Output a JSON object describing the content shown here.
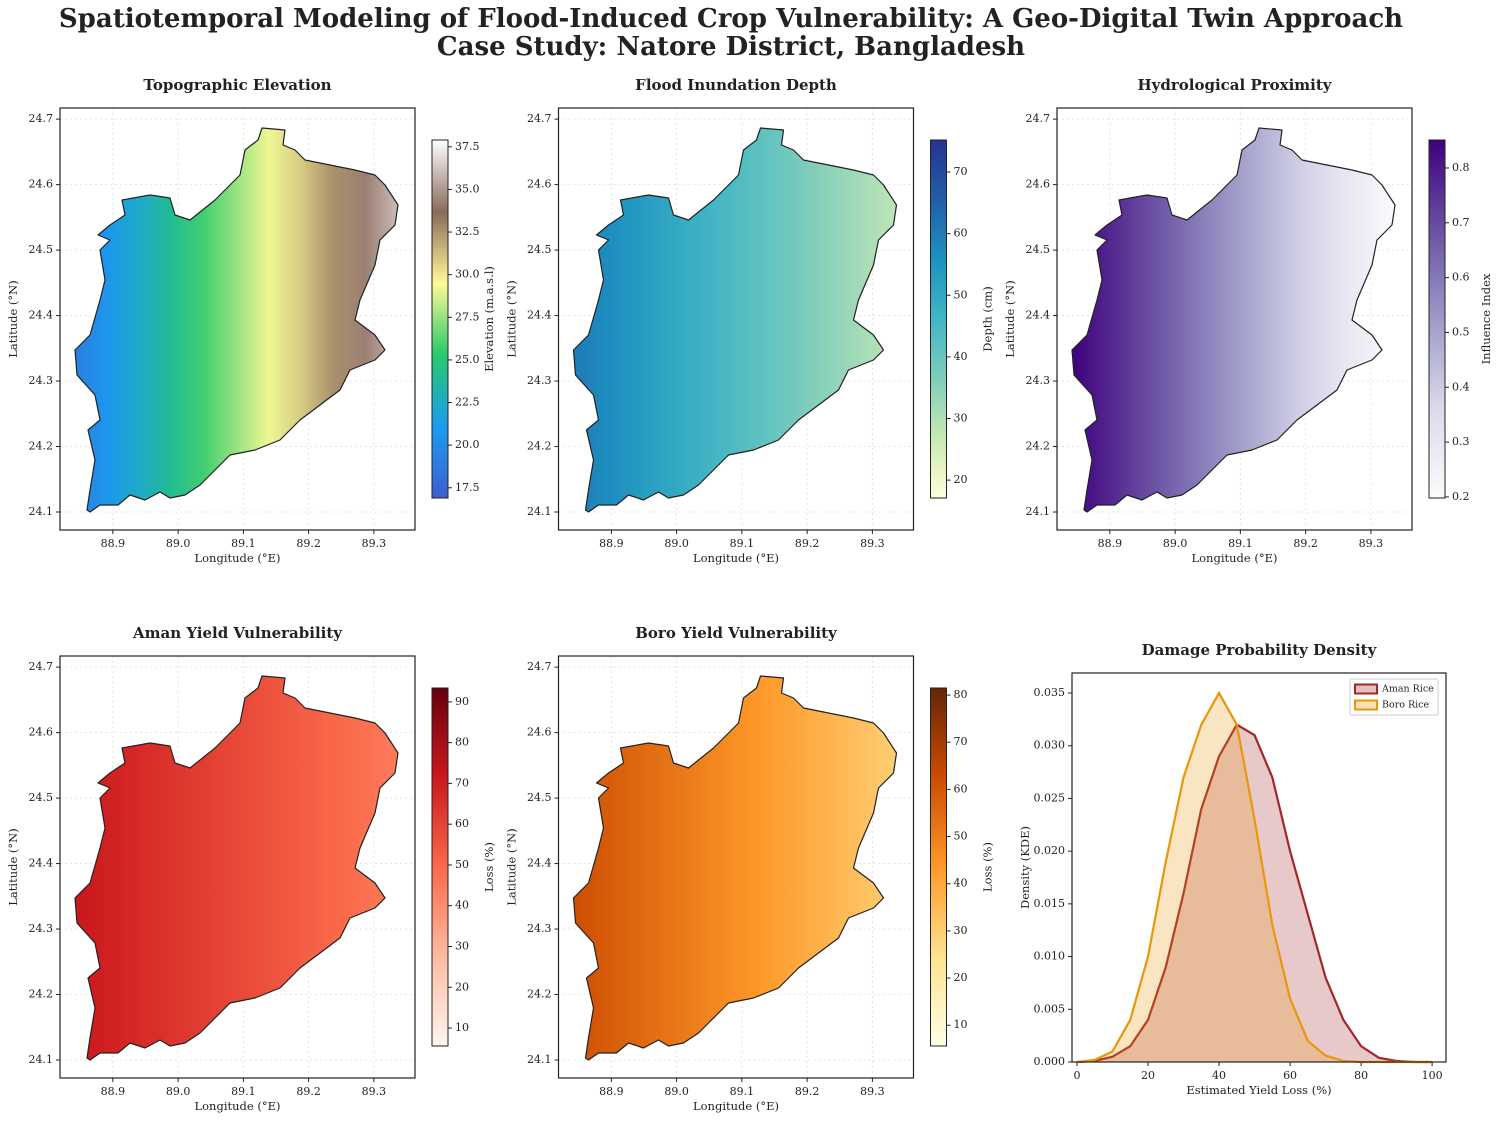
{
  "title": "Spatiotemporal Modeling of Flood-Induced Crop Vulnerability: A Geo-Digital Twin Approach",
  "subtitle": "Case Study: Natore District, Bangladesh",
  "chart_data": [
    {
      "type": "map",
      "title": "Topographic Elevation",
      "x_label": "Longitude (°E)",
      "y_label": "Latitude (°N)",
      "xlim": [
        88.819,
        89.363
      ],
      "ylim": [
        24.0725,
        24.717
      ],
      "grid": true,
      "xticks": [
        88.9,
        {
          "value": 89,
          "label": "89.0"
        },
        89.1,
        89.2,
        89.3
      ],
      "yticks": [
        24.1,
        24.2,
        24.3,
        24.4,
        24.5,
        24.6,
        24.7
      ],
      "colorbar_label": "Elevation (m.a.s.l)",
      "clim": [
        16.9,
        37.9
      ],
      "colorbar_ticks": [
        17.5,
        {
          "value": 20,
          "label": "20.0"
        },
        22.5,
        {
          "value": 25,
          "label": "25.0"
        },
        27.5,
        {
          "value": 30,
          "label": "30.0"
        },
        32.5,
        {
          "value": 35,
          "label": "35.0"
        },
        37.5
      ],
      "colormap": [
        "#3d5fd0",
        "#1a9cf0",
        "#27c96a",
        "#fffa96",
        "#8a6a5c",
        "#ffffff"
      ],
      "field_west": 19,
      "field_east": 36
    },
    {
      "type": "map",
      "title": "Flood Inundation Depth",
      "x_label": "Longitude (°E)",
      "y_label": "Latitude (°N)",
      "xlim": [
        88.819,
        89.363
      ],
      "ylim": [
        24.0725,
        24.717
      ],
      "grid": true,
      "xticks": [
        88.9,
        {
          "value": 89,
          "label": "89.0"
        },
        89.1,
        89.2,
        89.3
      ],
      "yticks": [
        24.1,
        24.2,
        24.3,
        24.4,
        24.5,
        24.6,
        24.7
      ],
      "colorbar_label": "Depth (cm)",
      "clim": [
        17.1,
        75.2
      ],
      "colorbar_ticks": [
        20,
        30,
        40,
        50,
        60,
        70
      ],
      "colormap": [
        "#ffffd9",
        "#c7e9b4",
        "#7fcdbb",
        "#41b6c4",
        "#1d91c0",
        "#225ea8",
        "#253494"
      ],
      "field_west": 60,
      "field_east": 28
    },
    {
      "type": "map",
      "title": "Hydrological Proximity",
      "x_label": "Longitude (°E)",
      "y_label": "Latitude (°N)",
      "xlim": [
        88.819,
        89.363
      ],
      "ylim": [
        24.0725,
        24.717
      ],
      "grid": true,
      "xticks": [
        88.9,
        {
          "value": 89,
          "label": "89.0"
        },
        89.1,
        89.2,
        89.3
      ],
      "yticks": [
        24.1,
        24.2,
        24.3,
        24.4,
        24.5,
        24.6,
        24.7
      ],
      "colorbar_label": "Influence Index",
      "clim": [
        0.198,
        0.851
      ],
      "colorbar_ticks": [
        0.2,
        0.3,
        0.4,
        0.5,
        0.6,
        0.7,
        0.8
      ],
      "colormap": [
        "#fcfbfd",
        "#dadaeb",
        "#9e9ac8",
        "#6a51a3",
        "#3f007d"
      ],
      "field_west": 0.85,
      "field_east": 0.2
    },
    {
      "type": "map",
      "title": "Aman Yield Vulnerability",
      "x_label": "Longitude (°E)",
      "y_label": "Latitude (°N)",
      "xlim": [
        88.819,
        89.363
      ],
      "ylim": [
        24.0725,
        24.717
      ],
      "grid": true,
      "xticks": [
        88.9,
        {
          "value": 89,
          "label": "89.0"
        },
        89.1,
        89.2,
        89.3
      ],
      "yticks": [
        24.1,
        24.2,
        24.3,
        24.4,
        24.5,
        24.6,
        24.7
      ],
      "colorbar_label": "Loss (%)",
      "clim": [
        5.6,
        93.4
      ],
      "colorbar_ticks": [
        10,
        20,
        30,
        40,
        50,
        60,
        70,
        80,
        90
      ],
      "colormap": [
        "#fff5f0",
        "#fcbba1",
        "#fb6a4a",
        "#cb181d",
        "#67000d"
      ],
      "field_west": 72,
      "field_east": 45
    },
    {
      "type": "map",
      "title": "Boro Yield Vulnerability",
      "x_label": "Longitude (°E)",
      "y_label": "Latitude (°N)",
      "xlim": [
        88.819,
        89.363
      ],
      "ylim": [
        24.0725,
        24.717
      ],
      "grid": true,
      "xticks": [
        88.9,
        {
          "value": 89,
          "label": "89.0"
        },
        89.1,
        89.2,
        89.3
      ],
      "yticks": [
        24.1,
        24.2,
        24.3,
        24.4,
        24.5,
        24.6,
        24.7
      ],
      "colorbar_label": "Loss (%)",
      "clim": [
        5.6,
        81.5
      ],
      "colorbar_ticks": [
        10,
        20,
        30,
        40,
        50,
        60,
        70,
        80
      ],
      "colormap": [
        "#ffffe5",
        "#fee391",
        "#fe9929",
        "#cc4c02",
        "#662506"
      ],
      "field_west": 62,
      "field_east": 30
    },
    {
      "type": "kde",
      "title": "Damage Probability Density",
      "x_label": "Estimated Yield Loss (%)",
      "y_label": "Density (KDE)",
      "xlim": [
        -1.4,
        103.9
      ],
      "ylim": [
        0,
        0.0369
      ],
      "legend": "upper right",
      "xticks": [
        0,
        20,
        40,
        60,
        80,
        100
      ],
      "yticks": [
        {
          "value": 0,
          "label": "0.000"
        },
        {
          "value": 0.005,
          "label": "0.005"
        },
        {
          "value": 0.01,
          "label": "0.010"
        },
        {
          "value": 0.015,
          "label": "0.015"
        },
        {
          "value": 0.02,
          "label": "0.020"
        },
        {
          "value": 0.025,
          "label": "0.025"
        },
        {
          "value": 0.03,
          "label": "0.030"
        },
        {
          "value": 0.035,
          "label": "0.035"
        }
      ],
      "x": [
        0,
        5,
        10,
        15,
        20,
        25,
        30,
        35,
        40,
        45,
        50,
        55,
        60,
        65,
        70,
        75,
        80,
        85,
        90,
        95,
        100
      ],
      "series": [
        {
          "name": "Aman Rice",
          "color": "#a3262a",
          "values": [
            0,
            0.0001,
            0.0005,
            0.0015,
            0.004,
            0.009,
            0.016,
            0.024,
            0.029,
            0.032,
            0.031,
            0.027,
            0.02,
            0.014,
            0.008,
            0.004,
            0.0015,
            0.0004,
            0.0001,
            0,
            0
          ]
        },
        {
          "name": "Boro Rice",
          "color": "#e8960c",
          "values": [
            0,
            0.0002,
            0.001,
            0.004,
            0.01,
            0.019,
            0.027,
            0.032,
            0.035,
            0.032,
            0.023,
            0.013,
            0.006,
            0.002,
            0.0006,
            0.0001,
            0,
            0,
            0,
            0,
            0
          ]
        }
      ]
    }
  ]
}
